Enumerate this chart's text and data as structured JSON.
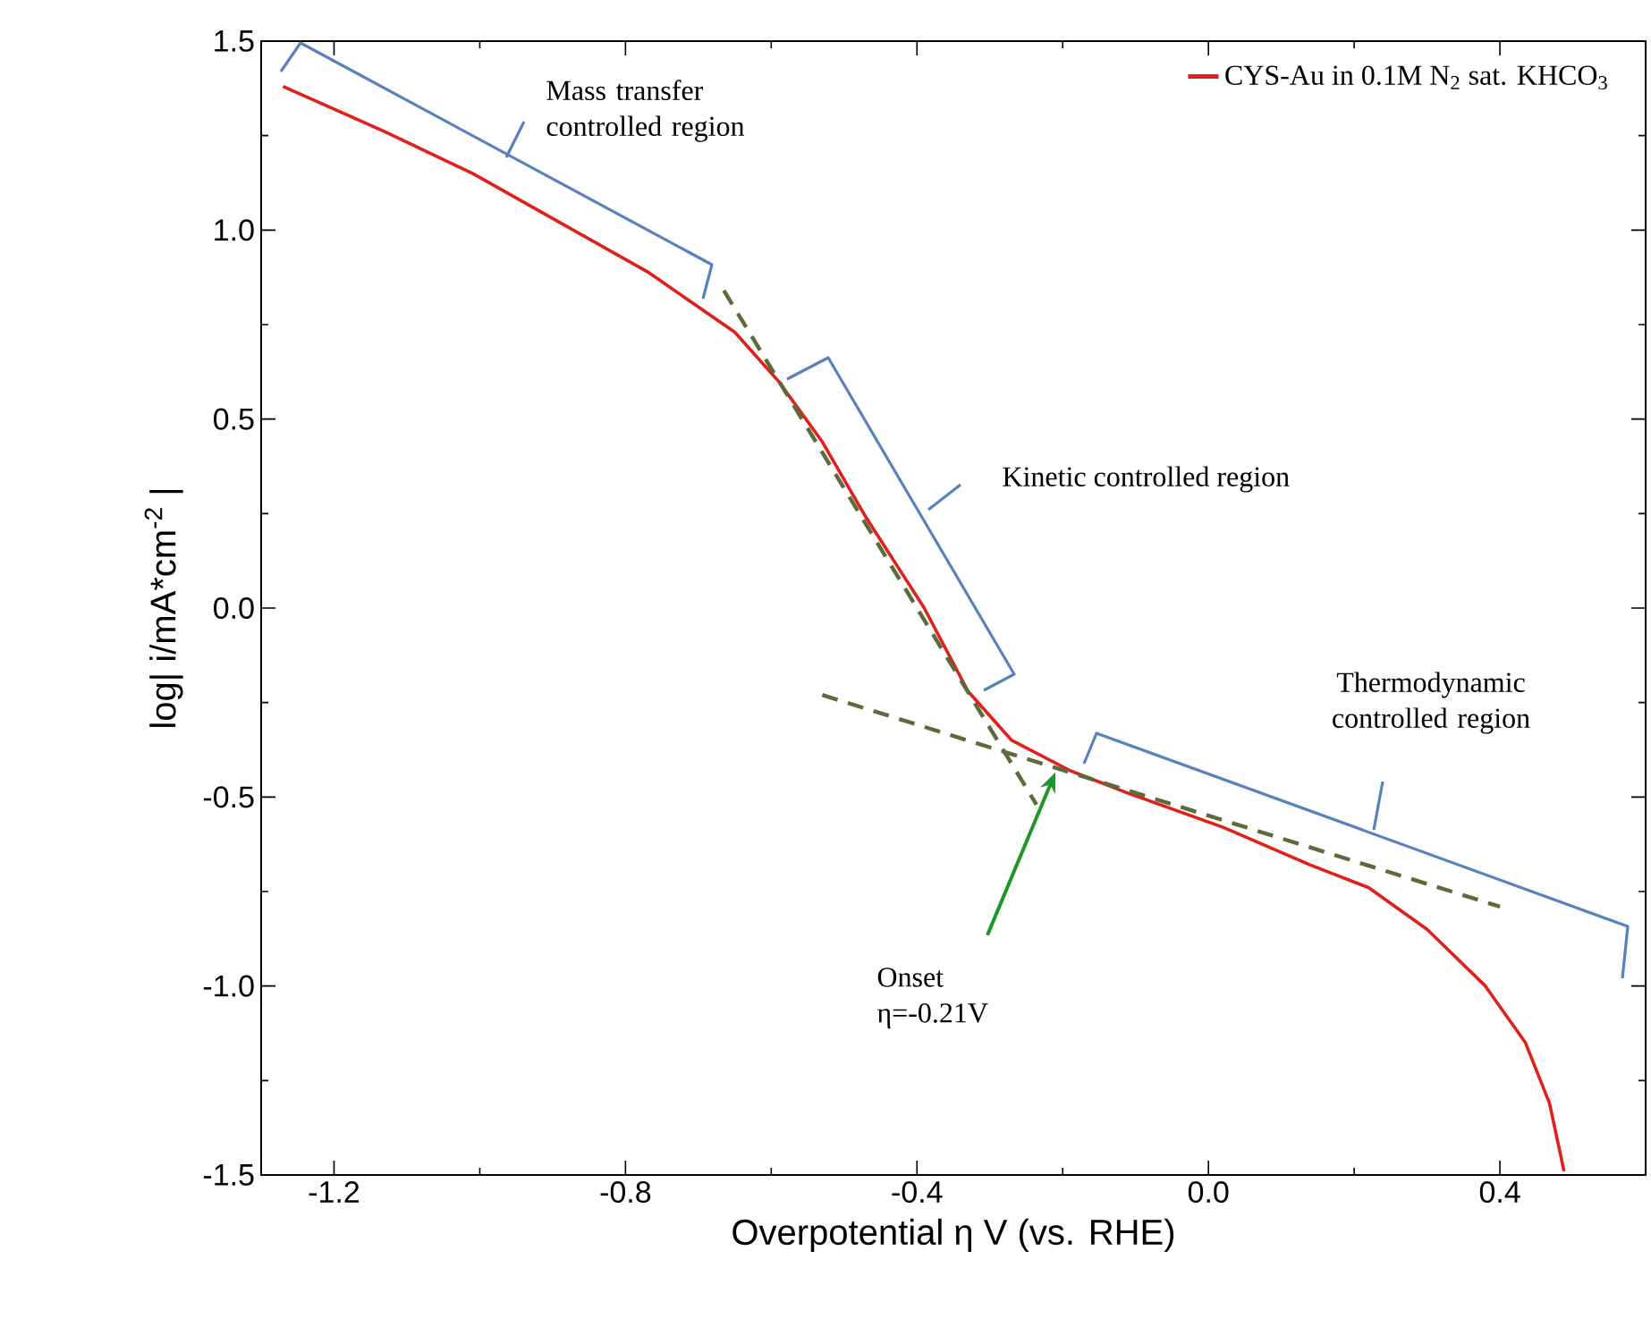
{
  "chart_data": {
    "type": "line",
    "xlabel": "Overpotential η V (vs. RHE)",
    "ylabel": "log| i/mA*cm$^{-2}$ |",
    "xlim": [
      -1.3,
      0.6
    ],
    "ylim": [
      -1.5,
      1.5
    ],
    "xticks": [
      -1.2,
      {
        "value": -1.0,
        "label": null
      },
      -0.8,
      {
        "value": -0.6,
        "label": null
      },
      -0.4,
      {
        "value": -0.2,
        "label": null
      },
      {
        "value": 0,
        "label": "0.0"
      },
      {
        "value": 0.2,
        "label": null
      },
      0.4
    ],
    "yticks": [
      -1.5,
      {
        "value": -1.25,
        "label": null
      },
      {
        "value": -1,
        "label": "-1.0"
      },
      {
        "value": -0.75,
        "label": null
      },
      -0.5,
      {
        "value": -0.25,
        "label": null
      },
      {
        "value": 0,
        "label": "0.0"
      },
      {
        "value": 0.25,
        "label": null
      },
      0.5,
      {
        "value": 0.75,
        "label": null
      },
      {
        "value": 1,
        "label": "1.0"
      },
      {
        "value": 1.25,
        "label": null
      },
      1.5
    ],
    "legend": "top right",
    "series": [
      {
        "name": "CYS-Au in 0.1M N$_{2}$ sat. KHCO$_{3}$",
        "color": "#e0201b",
        "line_style": "solid",
        "x": [
          -1.27,
          -1.13,
          -1.01,
          -0.89,
          -0.77,
          -0.71,
          -0.65,
          -0.59,
          -0.53,
          -0.47,
          -0.39,
          -0.33,
          -0.27,
          -0.19,
          -0.11,
          0.02,
          0.14,
          0.22,
          0.3,
          0.38,
          0.435,
          0.468,
          0.488
        ],
        "values": [
          1.38,
          1.26,
          1.15,
          1.02,
          0.89,
          0.81,
          0.73,
          0.6,
          0.44,
          0.24,
          0.0,
          -0.22,
          -0.35,
          -0.43,
          -0.49,
          -0.58,
          -0.68,
          -0.74,
          -0.85,
          -1.0,
          -1.15,
          -1.31,
          -1.49
        ]
      },
      {
        "type": "line",
        "color": "#5b6b3a",
        "line_style": "dashed",
        "x": [
          -0.665,
          -0.236
        ],
        "values": [
          0.84,
          -0.52
        ]
      },
      {
        "type": "line",
        "color": "#5b6b3a",
        "line_style": "dashed",
        "x": [
          -0.53,
          0.4
        ],
        "values": [
          -0.23,
          -0.79
        ]
      }
    ],
    "annotations": [
      "Mass transfer controlled region",
      "Kinetic controlled region",
      "Thermodynamic controlled region",
      {
        "text": "Onset η=-0.21V",
        "x": -0.21,
        "y": -0.43
      }
    ]
  }
}
